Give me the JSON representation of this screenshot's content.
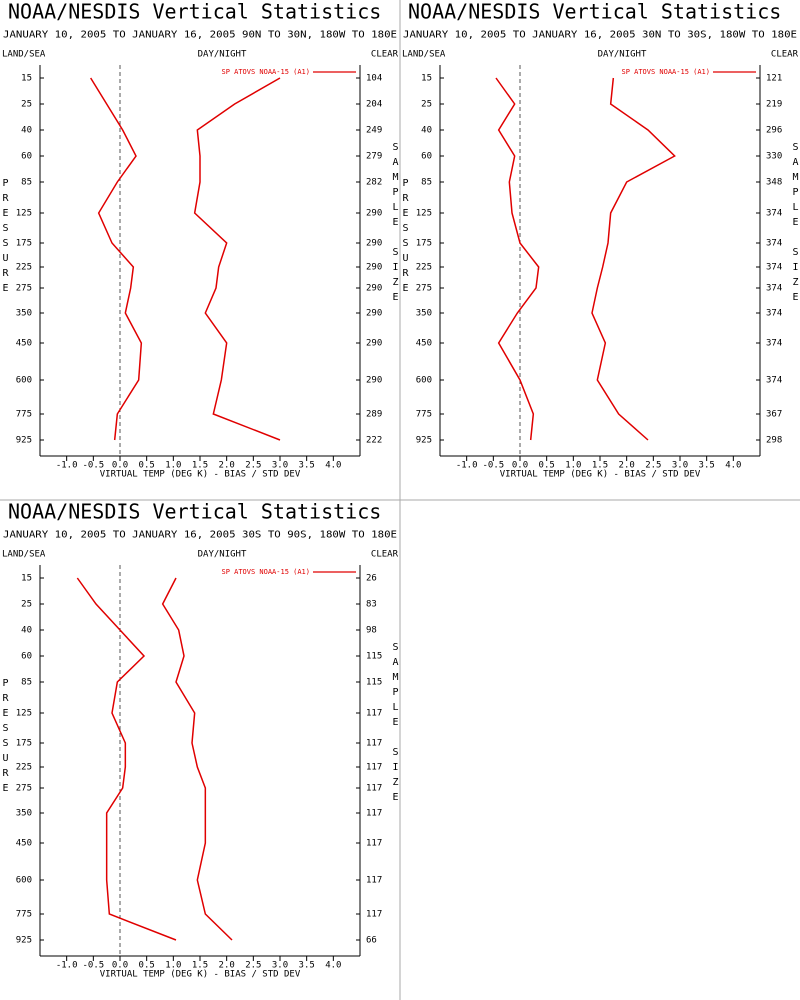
{
  "chart_data": [
    {
      "type": "line",
      "title": "NOAA/NESDIS Vertical Statistics",
      "subtitle": "JANUARY 10, 2005 TO JANUARY 16, 2005  90N TO 30N, 180W TO 180E",
      "corner_labels": [
        "LAND/SEA",
        "DAY/NIGHT",
        "CLEAR"
      ],
      "xlabel": "VIRTUAL TEMP (DEG K) - BIAS / STD DEV",
      "ylabel": "PRESSURE",
      "y2label": "SAMPLE SIZE",
      "levels": [
        15,
        25,
        40,
        60,
        85,
        125,
        175,
        225,
        275,
        350,
        450,
        600,
        775,
        925
      ],
      "sample_size": [
        104,
        204,
        249,
        279,
        282,
        290,
        290,
        290,
        290,
        290,
        290,
        290,
        289,
        222
      ],
      "series": [
        {
          "name": "SP ATOVS NOAA-15 (A1)",
          "color": "#e00000",
          "bias": [
            -0.55,
            -0.25,
            0.05,
            0.3,
            -0.05,
            -0.4,
            -0.15,
            0.25,
            0.2,
            0.1,
            0.4,
            0.35,
            -0.05,
            -0.1
          ],
          "std_dev": [
            3.0,
            2.15,
            1.45,
            1.5,
            1.5,
            1.4,
            2.0,
            1.85,
            1.8,
            1.6,
            2.0,
            1.9,
            1.75,
            3.0
          ]
        }
      ],
      "xlim": [
        -1.5,
        4.5
      ],
      "xticks": [
        {
          "value": -1,
          "label": "-1.0"
        },
        -0.5,
        {
          "value": 0,
          "label": "0.0"
        },
        0.5,
        {
          "value": 1,
          "label": "1.0"
        },
        1.5,
        {
          "value": 2,
          "label": "2.0"
        },
        2.5,
        {
          "value": 3,
          "label": "3.0"
        },
        3.5,
        {
          "value": 4,
          "label": "4.0"
        }
      ]
    },
    {
      "type": "line",
      "title": "NOAA/NESDIS Vertical Statistics",
      "subtitle": "JANUARY 10, 2005 TO JANUARY 16, 2005  30N TO 30S, 180W TO 180E",
      "corner_labels": [
        "LAND/SEA",
        "DAY/NIGHT",
        "CLEAR"
      ],
      "xlabel": "VIRTUAL TEMP (DEG K) - BIAS / STD DEV",
      "ylabel": "PRESSURE",
      "y2label": "SAMPLE SIZE",
      "levels": [
        15,
        25,
        40,
        60,
        85,
        125,
        175,
        225,
        275,
        350,
        450,
        600,
        775,
        925
      ],
      "sample_size": [
        121,
        219,
        296,
        330,
        348,
        374,
        374,
        374,
        374,
        374,
        374,
        374,
        367,
        298
      ],
      "series": [
        {
          "name": "SP ATOVS NOAA-15 (A1)",
          "color": "#e00000",
          "bias": [
            -0.45,
            -0.1,
            -0.4,
            -0.1,
            -0.2,
            -0.15,
            0.0,
            0.35,
            0.3,
            -0.05,
            -0.4,
            0.0,
            0.25,
            0.2
          ],
          "std_dev": [
            1.75,
            1.7,
            2.4,
            2.9,
            2.0,
            1.7,
            1.65,
            1.55,
            1.45,
            1.35,
            1.6,
            1.45,
            1.85,
            2.4
          ]
        }
      ],
      "xlim": [
        -1.5,
        4.5
      ],
      "xticks": [
        {
          "value": -1,
          "label": "-1.0"
        },
        -0.5,
        {
          "value": 0,
          "label": "0.0"
        },
        0.5,
        {
          "value": 1,
          "label": "1.0"
        },
        1.5,
        {
          "value": 2,
          "label": "2.0"
        },
        2.5,
        {
          "value": 3,
          "label": "3.0"
        },
        3.5,
        {
          "value": 4,
          "label": "4.0"
        }
      ]
    },
    {
      "type": "line",
      "title": "NOAA/NESDIS Vertical Statistics",
      "subtitle": "JANUARY 10, 2005 TO JANUARY 16, 2005  30S TO 90S, 180W TO 180E",
      "corner_labels": [
        "LAND/SEA",
        "DAY/NIGHT",
        "CLEAR"
      ],
      "xlabel": "VIRTUAL TEMP (DEG K) - BIAS / STD DEV",
      "ylabel": "PRESSURE",
      "y2label": "SAMPLE SIZE",
      "levels": [
        15,
        25,
        40,
        60,
        85,
        125,
        175,
        225,
        275,
        350,
        450,
        600,
        775,
        925
      ],
      "sample_size": [
        26,
        83,
        98,
        115,
        115,
        117,
        117,
        117,
        117,
        117,
        117,
        117,
        117,
        66
      ],
      "series": [
        {
          "name": "SP ATOVS NOAA-15 (A1)",
          "color": "#e00000",
          "bias": [
            -0.8,
            -0.45,
            0.0,
            0.45,
            -0.05,
            -0.15,
            0.1,
            0.1,
            0.05,
            -0.25,
            -0.25,
            -0.25,
            -0.2,
            1.05
          ],
          "std_dev": [
            1.05,
            0.8,
            1.1,
            1.2,
            1.05,
            1.4,
            1.35,
            1.45,
            1.6,
            1.6,
            1.6,
            1.45,
            1.6,
            2.1
          ]
        }
      ],
      "xlim": [
        -1.5,
        4.5
      ],
      "xticks": [
        {
          "value": -1,
          "label": "-1.0"
        },
        -0.5,
        {
          "value": 0,
          "label": "0.0"
        },
        0.5,
        {
          "value": 1,
          "label": "1.0"
        },
        1.5,
        {
          "value": 2,
          "label": "2.0"
        },
        2.5,
        {
          "value": 3,
          "label": "3.0"
        },
        3.5,
        {
          "value": 4,
          "label": "4.0"
        }
      ]
    }
  ]
}
